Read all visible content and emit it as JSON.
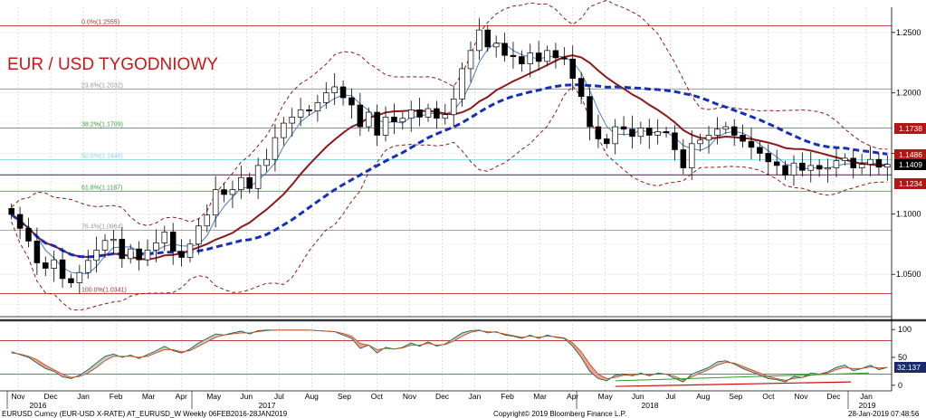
{
  "title": "EUR / USD TYGODNIOWY",
  "footer": {
    "left": "EURUSD Curncy (EUR-USD X-RATE) AT_EURUSD_W  Weekly 06FEB2016-28JAN2019",
    "center": "Copyright© 2019 Bloomberg Finance L.P.",
    "right": "28-Jan-2019 07:48:56"
  },
  "colors": {
    "candle_up": "#ffffff",
    "candle_down": "#000000",
    "ma_short": "#4a7fc0",
    "ma_mid": "#8b1a1a",
    "ma_long": "#1530b8",
    "bollinger": "#8b1a1a",
    "fib_red": "#b03030",
    "fib_green": "#3aa83a",
    "fib_cyan": "#80d8e8",
    "fib_purple": "#7a2a5a",
    "tag_red": "#b01818",
    "tag_black": "#000000",
    "tag_navy": "#1a2a6a",
    "tag_teal": "#1a6a7a"
  },
  "chart_data": [
    {
      "type": "candlestick",
      "title": "EUR / USD TYGODNIOWY",
      "x_labels": [
        "Nov",
        "Dec",
        "Jan",
        "Feb",
        "Mar",
        "Apr",
        "May",
        "Jun",
        "Jul",
        "Aug",
        "Sep",
        "Oct",
        "Nov",
        "Dec",
        "Jan",
        "Feb",
        "Mar",
        "Apr",
        "May",
        "Jun",
        "Jul",
        "Aug",
        "Sep",
        "Oct",
        "Nov",
        "Dec",
        "Jan"
      ],
      "year_labels": [
        "2016",
        "2017",
        "2018",
        "2019"
      ],
      "y_ticks": [
        "1.2500",
        "1.2000",
        "1.1500",
        "1.1000",
        "1.0500"
      ],
      "ylim": [
        1.015,
        1.2708
      ],
      "fib_levels": [
        {
          "label": "0.0%(1.2555)",
          "value": 1.2555,
          "color": "#b03030"
        },
        {
          "label": "23.6%(1.2032)",
          "value": 1.2032,
          "color": "#999999"
        },
        {
          "label": "38.2%(1.1709)",
          "value": 1.1709,
          "color": "#3aa83a"
        },
        {
          "label": "50.0%(1.1448)",
          "value": 1.1448,
          "color": "#80d8e8"
        },
        {
          "label": "61.8%(1.1187)",
          "value": 1.1187,
          "color": "#3aa83a"
        },
        {
          "label": "76.4%(1.0864)",
          "value": 1.0864,
          "color": "#999999"
        },
        {
          "label": "100.0%(1.0341)",
          "value": 1.0341,
          "color": "#b03030"
        }
      ],
      "extra_hlines": [
        {
          "value": 1.1322,
          "color": "#7a2a5a"
        }
      ],
      "price_tags": [
        {
          "label": "1.1738",
          "value": 1.1738,
          "color": "#b01818"
        },
        {
          "label": "1.1486",
          "value": 1.1486,
          "color": "#b01818"
        },
        {
          "label": "1.1409",
          "value": 1.1409,
          "color": "#000000"
        },
        {
          "label": "1.1234",
          "value": 1.1234,
          "color": "#b01818"
        }
      ],
      "close": [
        1.0995,
        1.088,
        1.0775,
        1.0595,
        1.055,
        1.062,
        1.0465,
        1.043,
        1.0515,
        1.0615,
        1.07,
        1.078,
        1.079,
        1.063,
        1.071,
        1.062,
        1.07,
        1.076,
        1.085,
        1.069,
        1.064,
        1.075,
        1.09,
        1.099,
        1.12,
        1.116,
        1.12,
        1.13,
        1.121,
        1.14,
        1.145,
        1.163,
        1.175,
        1.18,
        1.186,
        1.185,
        1.192,
        1.2,
        1.205,
        1.196,
        1.19,
        1.172,
        1.184,
        1.165,
        1.18,
        1.176,
        1.179,
        1.186,
        1.18,
        1.187,
        1.179,
        1.182,
        1.195,
        1.22,
        1.235,
        1.252,
        1.238,
        1.241,
        1.231,
        1.23,
        1.224,
        1.233,
        1.226,
        1.235,
        1.229,
        1.228,
        1.212,
        1.197,
        1.172,
        1.162,
        1.158,
        1.172,
        1.17,
        1.164,
        1.171,
        1.165,
        1.168,
        1.167,
        1.153,
        1.138,
        1.158,
        1.161,
        1.165,
        1.17,
        1.172,
        1.165,
        1.16,
        1.155,
        1.15,
        1.143,
        1.14,
        1.132,
        1.142,
        1.136,
        1.14,
        1.137,
        1.138,
        1.144,
        1.146,
        1.138,
        1.141,
        1.145,
        1.1386,
        1.1409
      ],
      "opens_prev_close": true
    },
    {
      "type": "line",
      "title": "Stochastic oscillator",
      "y_ticks": [
        "100",
        "50",
        "0"
      ],
      "ylim": [
        -10,
        110
      ],
      "hlines": [
        {
          "value": 80,
          "color": "#c04040"
        },
        {
          "value": 20,
          "color": "#3aa83a"
        }
      ],
      "value_tag": {
        "label": "32.137",
        "value": 32.137,
        "color": "#1a2a6a"
      },
      "series": [
        {
          "values": [
            60,
            55,
            50,
            40,
            30,
            25,
            15,
            12,
            18,
            28,
            40,
            52,
            56,
            50,
            54,
            48,
            55,
            62,
            70,
            62,
            58,
            65,
            76,
            84,
            92,
            90,
            94,
            97,
            92,
            98,
            99,
            99,
            99,
            99,
            99,
            99,
            98,
            97,
            96,
            90,
            84,
            66,
            72,
            58,
            68,
            65,
            68,
            76,
            70,
            78,
            70,
            74,
            84,
            94,
            98,
            99,
            94,
            96,
            90,
            88,
            84,
            90,
            84,
            90,
            86,
            84,
            70,
            50,
            25,
            12,
            8,
            18,
            20,
            17,
            22,
            17,
            22,
            20,
            12,
            6,
            20,
            26,
            32,
            42,
            44,
            38,
            30,
            24,
            18,
            12,
            10,
            6,
            16,
            14,
            22,
            20,
            24,
            32,
            36,
            26,
            30,
            36,
            28,
            32
          ]
        },
        {
          "values": [
            58,
            56,
            52,
            46,
            36,
            28,
            20,
            14,
            16,
            22,
            32,
            44,
            52,
            52,
            52,
            50,
            52,
            58,
            64,
            64,
            60,
            62,
            70,
            78,
            86,
            90,
            92,
            94,
            94,
            96,
            98,
            99,
            99,
            99,
            99,
            99,
            98,
            97,
            96,
            93,
            88,
            75,
            72,
            64,
            66,
            65,
            67,
            72,
            72,
            75,
            72,
            73,
            79,
            88,
            95,
            98,
            96,
            95,
            92,
            89,
            86,
            88,
            86,
            88,
            87,
            85,
            76,
            60,
            38,
            20,
            12,
            14,
            18,
            18,
            20,
            19,
            20,
            20,
            16,
            10,
            15,
            22,
            28,
            36,
            41,
            40,
            34,
            28,
            22,
            16,
            12,
            9,
            12,
            14,
            18,
            20,
            22,
            28,
            32,
            30,
            30,
            33,
            31,
            32
          ]
        }
      ]
    }
  ]
}
